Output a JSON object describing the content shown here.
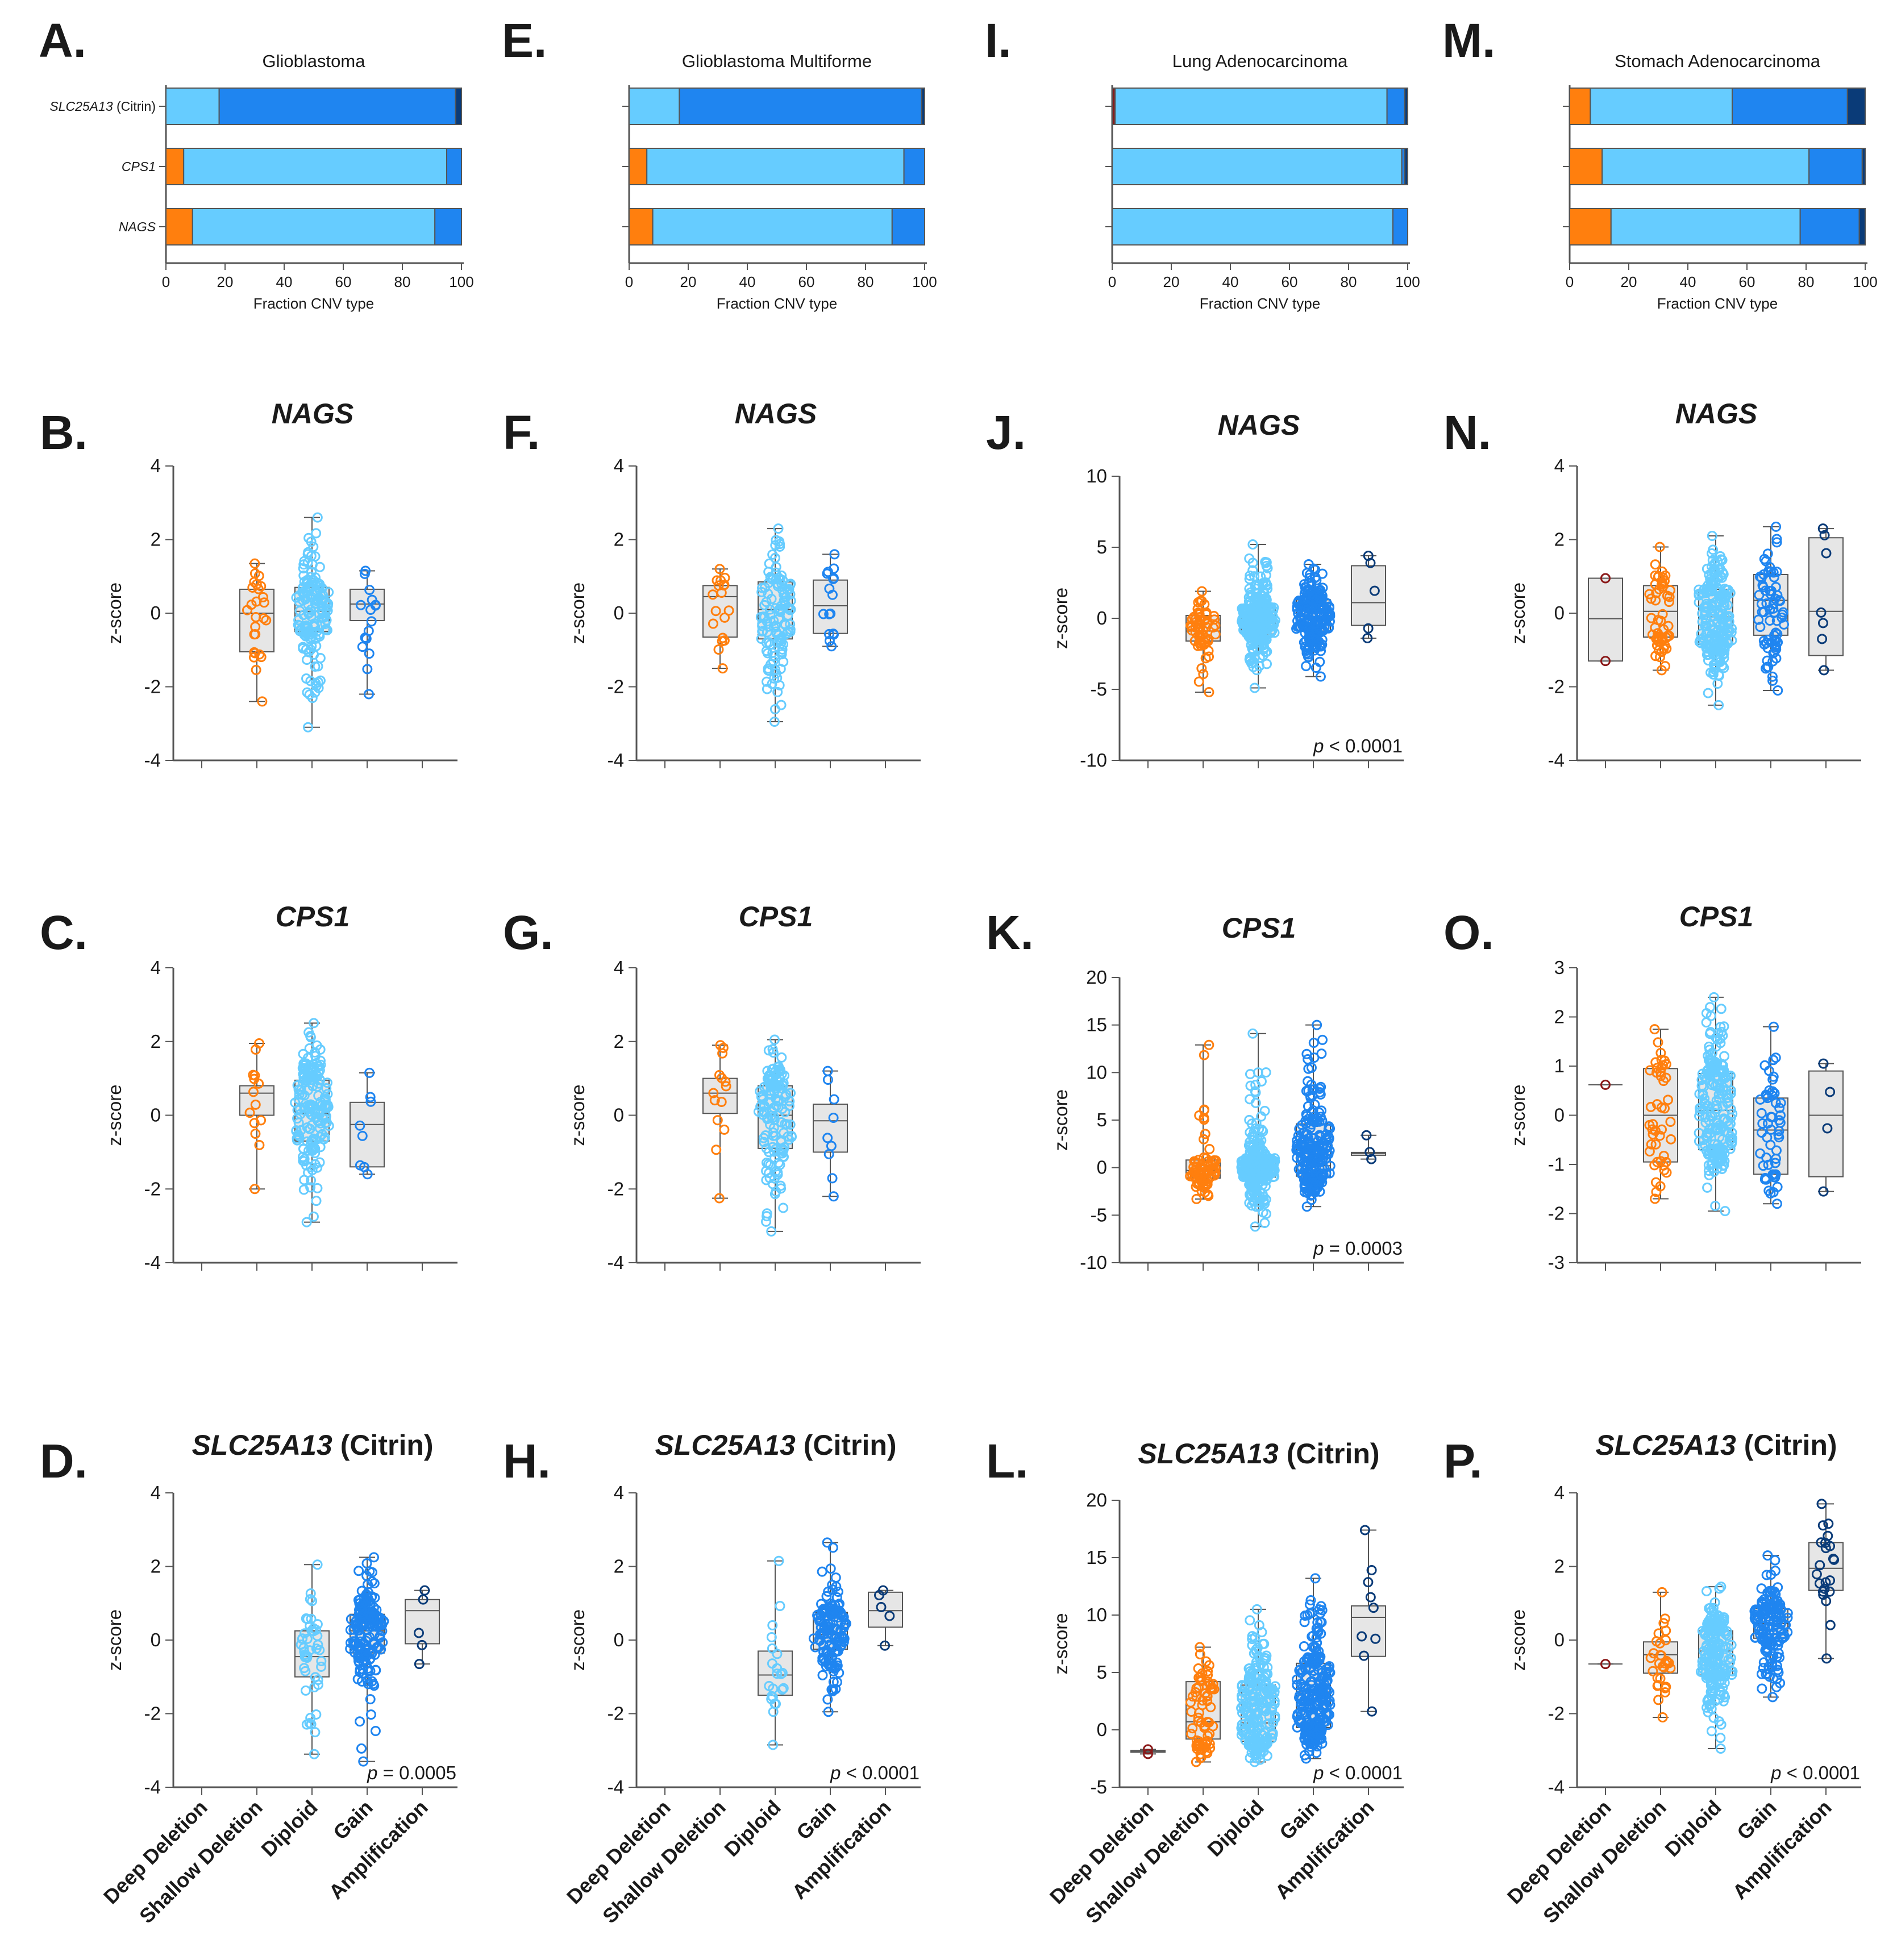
{
  "colors": {
    "deep_deletion": "#8b1a1a",
    "shallow_deletion": "#ff7f0e",
    "diploid": "#66ccff",
    "gain": "#1f85f0",
    "amplification": "#0a3b78",
    "box_fill": "#e6e6e6",
    "axis": "#555555"
  },
  "categories": [
    "Deep Deletion",
    "Shallow Deletion",
    "Diploid",
    "Gain",
    "Amplification"
  ],
  "columns": [
    {
      "bar_panel": {
        "letter": "A.",
        "title": "Glioblastoma",
        "xlabel": "Fraction CNV type",
        "show_gene_labels": true,
        "rows": [
          {
            "gene": "SLC25A13",
            "suffix": "(Citrin)",
            "fractions": [
              0,
              0,
              18,
              80,
              2
            ]
          },
          {
            "gene": "CPS1",
            "suffix": "",
            "fractions": [
              0,
              6,
              89,
              5,
              0
            ]
          },
          {
            "gene": "NAGS",
            "suffix": "",
            "fractions": [
              0,
              9,
              82,
              9,
              0
            ]
          }
        ]
      },
      "box_panels": [
        {
          "letter": "B.",
          "gene": "NAGS",
          "suffix": "",
          "ylim": [
            -4,
            4
          ],
          "yticks": [
            -4,
            -2,
            0,
            2,
            4
          ],
          "pvalue": "",
          "groups": [
            null,
            {
              "min": -2.4,
              "q1": -1.05,
              "med": 0.0,
              "q3": 0.65,
              "max": 1.35,
              "n": 26
            },
            {
              "min": -3.1,
              "q1": -0.5,
              "med": 0.05,
              "q3": 0.7,
              "max": 2.6,
              "n": 140
            },
            {
              "min": -2.2,
              "q1": -0.2,
              "med": 0.25,
              "q3": 0.65,
              "max": 1.15,
              "n": 16
            },
            null
          ]
        },
        {
          "letter": "C.",
          "gene": "CPS1",
          "suffix": "",
          "ylim": [
            -4,
            4
          ],
          "yticks": [
            -4,
            -2,
            0,
            2,
            4
          ],
          "pvalue": "",
          "groups": [
            null,
            {
              "min": -2.0,
              "q1": 0.0,
              "med": 0.6,
              "q3": 0.8,
              "max": 1.95,
              "n": 14
            },
            {
              "min": -2.9,
              "q1": -0.7,
              "med": 0.05,
              "q3": 0.95,
              "max": 2.5,
              "n": 160
            },
            {
              "min": -1.6,
              "q1": -1.4,
              "med": -0.25,
              "q3": 0.35,
              "max": 1.15,
              "n": 8
            },
            null
          ]
        },
        {
          "letter": "D.",
          "gene": "SLC25A13",
          "suffix": "(Citrin)",
          "ylim": [
            -4,
            4
          ],
          "yticks": [
            -4,
            -2,
            0,
            2,
            4
          ],
          "pvalue": "= 0.0005",
          "groups": [
            null,
            null,
            {
              "min": -3.1,
              "q1": -1.0,
              "med": -0.45,
              "q3": 0.25,
              "max": 2.05,
              "n": 45
            },
            {
              "min": -3.3,
              "q1": -0.35,
              "med": 0.25,
              "q3": 0.7,
              "max": 2.25,
              "n": 170
            },
            {
              "min": -0.65,
              "q1": -0.1,
              "med": 0.8,
              "q3": 1.1,
              "max": 1.35,
              "n": 5
            }
          ]
        }
      ]
    },
    {
      "bar_panel": {
        "letter": "E.",
        "title": "Glioblastoma Multiforme",
        "xlabel": "Fraction CNV type",
        "show_gene_labels": false,
        "rows": [
          {
            "gene": "SLC25A13",
            "suffix": "(Citrin)",
            "fractions": [
              0,
              0,
              17,
              82,
              1
            ]
          },
          {
            "gene": "CPS1",
            "suffix": "",
            "fractions": [
              0,
              6,
              87,
              7,
              0
            ]
          },
          {
            "gene": "NAGS",
            "suffix": "",
            "fractions": [
              0,
              8,
              81,
              11,
              0
            ]
          }
        ]
      },
      "box_panels": [
        {
          "letter": "F.",
          "gene": "NAGS",
          "suffix": "",
          "ylim": [
            -4,
            4
          ],
          "yticks": [
            -4,
            -2,
            0,
            2,
            4
          ],
          "pvalue": "",
          "groups": [
            null,
            {
              "min": -1.5,
              "q1": -0.65,
              "med": 0.45,
              "q3": 0.75,
              "max": 1.2,
              "n": 18
            },
            {
              "min": -2.95,
              "q1": -0.7,
              "med": 0.1,
              "q3": 0.85,
              "max": 2.3,
              "n": 120
            },
            {
              "min": -0.9,
              "q1": -0.55,
              "med": 0.2,
              "q3": 0.9,
              "max": 1.6,
              "n": 16
            },
            null
          ]
        },
        {
          "letter": "G.",
          "gene": "CPS1",
          "suffix": "",
          "ylim": [
            -4,
            4
          ],
          "yticks": [
            -4,
            -2,
            0,
            2,
            4
          ],
          "pvalue": "",
          "groups": [
            null,
            {
              "min": -2.25,
              "q1": 0.05,
              "med": 0.6,
              "q3": 1.0,
              "max": 1.9,
              "n": 14
            },
            {
              "min": -3.15,
              "q1": -0.9,
              "med": 0.0,
              "q3": 0.8,
              "max": 2.05,
              "n": 140
            },
            {
              "min": -2.2,
              "q1": -1.0,
              "med": -0.15,
              "q3": 0.3,
              "max": 1.2,
              "n": 9
            },
            null
          ]
        },
        {
          "letter": "H.",
          "gene": "SLC25A13",
          "suffix": "(Citrin)",
          "ylim": [
            -4,
            4
          ],
          "yticks": [
            -4,
            -2,
            0,
            2,
            4
          ],
          "pvalue": "< 0.0001",
          "groups": [
            null,
            null,
            {
              "min": -2.85,
              "q1": -1.5,
              "med": -0.95,
              "q3": -0.3,
              "max": 2.15,
              "n": 22
            },
            {
              "min": -1.95,
              "q1": -0.25,
              "med": 0.15,
              "q3": 0.75,
              "max": 2.65,
              "n": 140
            },
            {
              "min": -0.15,
              "q1": 0.35,
              "med": 0.8,
              "q3": 1.3,
              "max": 1.35,
              "n": 5
            }
          ]
        }
      ]
    },
    {
      "bar_panel": {
        "letter": "I.",
        "title": "Lung Adenocarcinoma",
        "xlabel": "Fraction CNV type",
        "show_gene_labels": false,
        "rows": [
          {
            "gene": "SLC25A13",
            "suffix": "(Citrin)",
            "fractions": [
              1,
              0,
              92,
              6,
              1
            ]
          },
          {
            "gene": "CPS1",
            "suffix": "",
            "fractions": [
              0,
              0,
              98,
              1,
              1
            ]
          },
          {
            "gene": "NAGS",
            "suffix": "",
            "fractions": [
              0,
              0,
              95,
              5,
              0
            ]
          }
        ]
      },
      "box_panels": [
        {
          "letter": "J.",
          "gene": "NAGS",
          "suffix": "",
          "ylim": [
            -10,
            10
          ],
          "yticks": [
            -10,
            -5,
            0,
            5,
            10
          ],
          "pvalue": "< 0.0001",
          "groups": [
            null,
            {
              "min": -5.2,
              "q1": -1.6,
              "med": -0.9,
              "q3": 0.2,
              "max": 1.9,
              "n": 60
            },
            {
              "min": -4.9,
              "q1": -1.1,
              "med": -0.3,
              "q3": 0.8,
              "max": 5.2,
              "n": 260
            },
            {
              "min": -4.1,
              "q1": -0.9,
              "med": -0.1,
              "q3": 1.3,
              "max": 3.8,
              "n": 230
            },
            {
              "min": -1.4,
              "q1": -0.5,
              "med": 1.1,
              "q3": 3.7,
              "max": 4.4,
              "n": 5
            }
          ]
        },
        {
          "letter": "K.",
          "gene": "CPS1",
          "suffix": "",
          "ylim": [
            -10,
            20
          ],
          "yticks": [
            -10,
            -5,
            0,
            5,
            10,
            15,
            20
          ],
          "pvalue": "= 0.0003",
          "groups": [
            null,
            {
              "min": -3.3,
              "q1": -1.1,
              "med": -0.3,
              "q3": 0.8,
              "max": 12.9,
              "n": 70
            },
            {
              "min": -6.2,
              "q1": -1.0,
              "med": -0.2,
              "q3": 1.0,
              "max": 14.1,
              "n": 260
            },
            {
              "min": -4.1,
              "q1": -0.9,
              "med": 0.2,
              "q3": 4.6,
              "max": 15.0,
              "n": 220
            },
            {
              "min": 0.9,
              "q1": 1.3,
              "med": 1.5,
              "q3": 1.6,
              "max": 3.4,
              "n": 3
            }
          ]
        },
        {
          "letter": "L.",
          "gene": "SLC25A13",
          "suffix": "(Citrin)",
          "ylim": [
            -5,
            20
          ],
          "yticks": [
            -5,
            0,
            5,
            10,
            15,
            20
          ],
          "pvalue": "< 0.0001",
          "groups": [
            {
              "min": -2.1,
              "q1": -1.95,
              "med": -1.9,
              "q3": -1.8,
              "max": -1.7,
              "n": 2
            },
            {
              "min": -2.8,
              "q1": -0.8,
              "med": 0.7,
              "q3": 4.2,
              "max": 7.2,
              "n": 70
            },
            {
              "min": -2.8,
              "q1": -1.0,
              "med": 0.6,
              "q3": 3.9,
              "max": 10.5,
              "n": 230
            },
            {
              "min": -2.5,
              "q1": 0.2,
              "med": 3.3,
              "q3": 5.8,
              "max": 13.2,
              "n": 250
            },
            {
              "min": 1.6,
              "q1": 6.4,
              "med": 9.8,
              "q3": 10.8,
              "max": 17.4,
              "n": 9
            }
          ]
        }
      ]
    },
    {
      "bar_panel": {
        "letter": "M.",
        "title": "Stomach Adenocarcinoma",
        "xlabel": "Fraction CNV type",
        "show_gene_labels": false,
        "rows": [
          {
            "gene": "SLC25A13",
            "suffix": "(Citrin)",
            "fractions": [
              0,
              7,
              48,
              39,
              6
            ]
          },
          {
            "gene": "CPS1",
            "suffix": "",
            "fractions": [
              0,
              11,
              70,
              18,
              1
            ]
          },
          {
            "gene": "NAGS",
            "suffix": "",
            "fractions": [
              0,
              14,
              64,
              20,
              2
            ]
          }
        ]
      },
      "box_panels": [
        {
          "letter": "N.",
          "gene": "NAGS",
          "suffix": "",
          "ylim": [
            -4,
            4
          ],
          "yticks": [
            -4,
            -2,
            0,
            2,
            4
          ],
          "pvalue": "",
          "groups": [
            {
              "min": -1.3,
              "q1": -1.3,
              "med": -0.15,
              "q3": 0.95,
              "max": 0.95,
              "n": 2
            },
            {
              "min": -1.55,
              "q1": -0.65,
              "med": 0.05,
              "q3": 0.75,
              "max": 1.8,
              "n": 55
            },
            {
              "min": -2.5,
              "q1": -0.85,
              "med": -0.1,
              "q3": 0.65,
              "max": 2.1,
              "n": 200
            },
            {
              "min": -2.1,
              "q1": -0.6,
              "med": 0.35,
              "q3": 1.05,
              "max": 2.35,
              "n": 70
            },
            {
              "min": -1.55,
              "q1": -1.15,
              "med": 0.05,
              "q3": 2.05,
              "max": 2.3,
              "n": 7
            }
          ]
        },
        {
          "letter": "O.",
          "gene": "CPS1",
          "suffix": "",
          "ylim": [
            -3,
            3
          ],
          "yticks": [
            -3,
            -2,
            -1,
            0,
            1,
            2,
            3
          ],
          "pvalue": "",
          "groups": [
            {
              "min": 0.62,
              "q1": 0.62,
              "med": 0.62,
              "q3": 0.62,
              "max": 0.62,
              "n": 1
            },
            {
              "min": -1.7,
              "q1": -0.95,
              "med": 0.0,
              "q3": 0.95,
              "max": 1.75,
              "n": 45
            },
            {
              "min": -1.95,
              "q1": -0.7,
              "med": 0.1,
              "q3": 0.85,
              "max": 2.4,
              "n": 220
            },
            {
              "min": -1.8,
              "q1": -1.2,
              "med": -0.3,
              "q3": 0.35,
              "max": 1.8,
              "n": 55
            },
            {
              "min": -1.55,
              "q1": -1.25,
              "med": 0.0,
              "q3": 0.9,
              "max": 1.05,
              "n": 4
            }
          ]
        },
        {
          "letter": "P.",
          "gene": "SLC25A13",
          "suffix": "(Citrin)",
          "ylim": [
            -4,
            4
          ],
          "yticks": [
            -4,
            -2,
            0,
            2,
            4
          ],
          "pvalue": "< 0.0001",
          "groups": [
            {
              "min": -0.65,
              "q1": -0.65,
              "med": -0.65,
              "q3": -0.65,
              "max": -0.65,
              "n": 1
            },
            {
              "min": -2.1,
              "q1": -0.9,
              "med": -0.4,
              "q3": -0.05,
              "max": 1.3,
              "n": 30
            },
            {
              "min": -2.95,
              "q1": -0.95,
              "med": -0.3,
              "q3": 0.25,
              "max": 1.45,
              "n": 180
            },
            {
              "min": -1.55,
              "q1": 0.05,
              "med": 0.45,
              "q3": 0.85,
              "max": 2.3,
              "n": 150
            },
            {
              "min": -0.5,
              "q1": 1.35,
              "med": 1.95,
              "q3": 2.65,
              "max": 3.7,
              "n": 22
            }
          ]
        }
      ]
    }
  ],
  "chart_data": [
    {
      "type": "bar",
      "title": "Glioblastoma",
      "xlabel": "Fraction CNV type",
      "xlim": [
        0,
        100
      ],
      "categories": [
        "SLC25A13 (Citrin)",
        "CPS1",
        "NAGS"
      ],
      "series": [
        {
          "values": [
            0,
            0,
            0
          ]
        },
        {
          "values": [
            0,
            6,
            9
          ]
        },
        {
          "values": [
            18,
            89,
            82
          ]
        },
        {
          "values": [
            80,
            5,
            9
          ]
        },
        {
          "values": [
            2,
            0,
            0
          ]
        }
      ]
    },
    {
      "type": "bar",
      "title": "Glioblastoma Multiforme",
      "xlabel": "Fraction CNV type",
      "xlim": [
        0,
        100
      ],
      "categories": [
        "SLC25A13 (Citrin)",
        "CPS1",
        "NAGS"
      ],
      "series": [
        {
          "values": [
            0,
            0,
            0
          ]
        },
        {
          "values": [
            0,
            6,
            8
          ]
        },
        {
          "values": [
            17,
            87,
            81
          ]
        },
        {
          "values": [
            82,
            7,
            11
          ]
        },
        {
          "values": [
            1,
            0,
            0
          ]
        }
      ]
    },
    {
      "type": "bar",
      "title": "Lung Adenocarcinoma",
      "xlabel": "Fraction CNV type",
      "xlim": [
        0,
        100
      ],
      "categories": [
        "SLC25A13 (Citrin)",
        "CPS1",
        "NAGS"
      ],
      "series": [
        {
          "values": [
            1,
            0,
            0
          ]
        },
        {
          "values": [
            0,
            0,
            0
          ]
        },
        {
          "values": [
            92,
            98,
            95
          ]
        },
        {
          "values": [
            6,
            1,
            5
          ]
        },
        {
          "values": [
            1,
            1,
            0
          ]
        }
      ]
    },
    {
      "type": "bar",
      "title": "Stomach Adenocarcinoma",
      "xlabel": "Fraction CNV type",
      "xlim": [
        0,
        100
      ],
      "categories": [
        "SLC25A13 (Citrin)",
        "CPS1",
        "NAGS"
      ],
      "series": [
        {
          "values": [
            0,
            0,
            0
          ]
        },
        {
          "values": [
            7,
            11,
            14
          ]
        },
        {
          "values": [
            48,
            70,
            64
          ]
        },
        {
          "values": [
            39,
            18,
            20
          ]
        },
        {
          "values": [
            6,
            1,
            2
          ]
        }
      ]
    },
    {
      "type": "box",
      "title": "NAGS",
      "ylabel": "z-score",
      "note": "box plots for columns B–P are described in columns[].box_panels (min, quartiles, median, max, n per CNV category)"
    }
  ]
}
